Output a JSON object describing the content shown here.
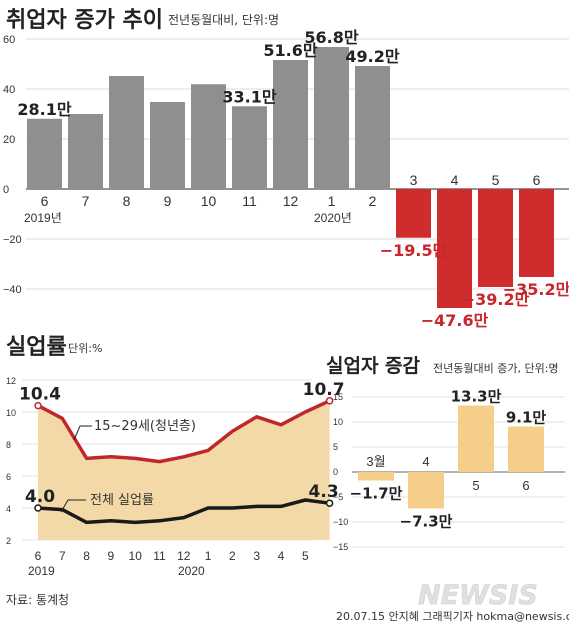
{
  "colors": {
    "gray_bar": "#8f8f8f",
    "red_bar": "#cf2d2d",
    "red_bar_dark": "#a81e22",
    "youth_line": "#c0272d",
    "total_line": "#1a1a1a",
    "line_fill": "#f4d9a8",
    "beige_bar": "#f5cf8a",
    "label_red": "#c8262b"
  },
  "chart_data": [
    {
      "type": "bar",
      "title": "취업자 증가 추이",
      "subtitle": "전년동월대비, 단위:명",
      "categories": [
        "6",
        "7",
        "8",
        "9",
        "10",
        "11",
        "12",
        "1",
        "2",
        "3",
        "4",
        "5",
        "6"
      ],
      "year_labels": [
        "2019년",
        "2020년"
      ],
      "values": [
        28.1,
        30.0,
        45.2,
        34.8,
        41.9,
        33.1,
        51.6,
        56.8,
        49.2,
        -19.5,
        -47.6,
        -39.2,
        -35.2
      ],
      "data_labels": [
        {
          "index": 0,
          "text": "28.1만"
        },
        {
          "index": 5,
          "text": "33.1만"
        },
        {
          "index": 6,
          "text": "51.6만"
        },
        {
          "index": 7,
          "text": "56.8만"
        },
        {
          "index": 8,
          "text": "49.2만"
        },
        {
          "index": 9,
          "text": "−19.5만"
        },
        {
          "index": 10,
          "text": "−47.6만"
        },
        {
          "index": 11,
          "text": "−39.2만"
        },
        {
          "index": 12,
          "text": "−35.2만"
        }
      ],
      "ylim": [
        -50,
        60
      ],
      "yticks": [
        "60",
        "40",
        "20",
        "0",
        "−20",
        "−40"
      ]
    },
    {
      "type": "line",
      "title": "실업률",
      "subtitle": "단위:%",
      "x": [
        "6",
        "7",
        "8",
        "9",
        "10",
        "11",
        "12",
        "1",
        "2",
        "3",
        "4",
        "5",
        "6"
      ],
      "x_tick_labels": [
        "6",
        "7",
        "8",
        "9",
        "10",
        "11",
        "12",
        "1",
        "2",
        "3",
        "4",
        "5"
      ],
      "year_labels": [
        "2019",
        "2020"
      ],
      "series": [
        {
          "name": "15~29세(청년층)",
          "values": [
            10.4,
            9.6,
            7.1,
            7.2,
            7.1,
            6.9,
            7.2,
            7.6,
            8.8,
            9.7,
            9.2,
            10.0,
            10.7
          ]
        },
        {
          "name": "전체 실업률",
          "values": [
            4.0,
            3.9,
            3.1,
            3.2,
            3.1,
            3.2,
            3.4,
            4.0,
            4.0,
            4.1,
            4.1,
            4.5,
            4.3
          ]
        }
      ],
      "data_labels": [
        "10.4",
        "10.7",
        "4.0",
        "4.3"
      ],
      "ylim": [
        2,
        12
      ],
      "yticks": [
        "12",
        "10",
        "8",
        "6",
        "4",
        "2"
      ]
    },
    {
      "type": "bar",
      "title": "실업자 증감",
      "subtitle": "전년동월대비 증가, 단위:명",
      "categories": [
        "3월",
        "4",
        "5",
        "6"
      ],
      "values": [
        -1.7,
        -7.3,
        13.3,
        9.1
      ],
      "data_labels": [
        "−1.7만",
        "−7.3만",
        "13.3만",
        "9.1만"
      ],
      "ylim": [
        -15,
        15
      ],
      "yticks": [
        "15",
        "10",
        "5",
        "0",
        "−5",
        "−10",
        "−15"
      ]
    }
  ],
  "footer": {
    "source": "자료: 통계청",
    "brand": "NEWSIS",
    "credit": "20.07.15 안지혜 그래픽기자 hokma@newsis.com"
  }
}
